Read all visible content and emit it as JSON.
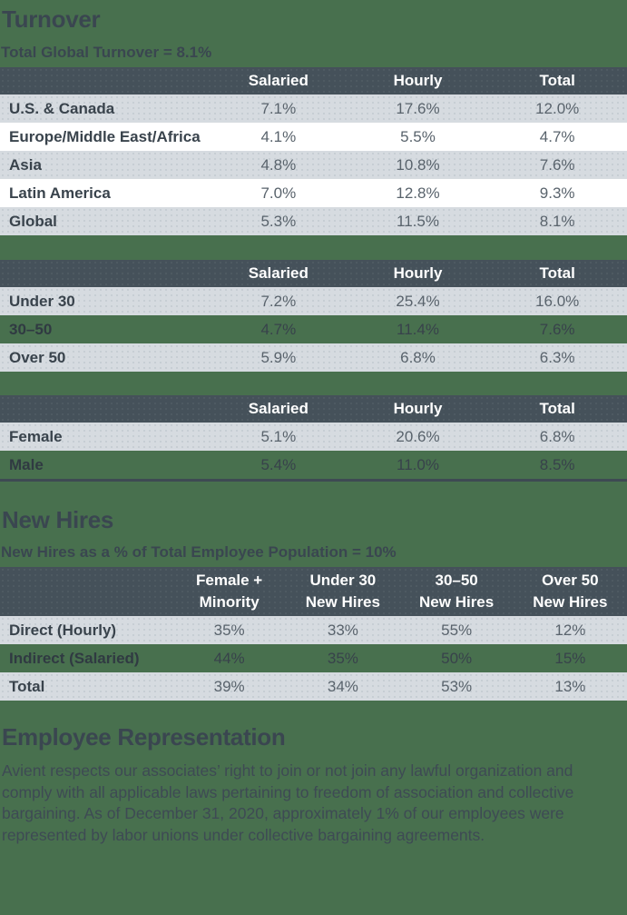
{
  "colors": {
    "page_bg": "#48704E",
    "table_header_bg": "#45515A",
    "row_gray": "#D6DBE0",
    "row_white": "#FFFFFF",
    "heading_text": "#3A4650",
    "header_text": "#FFFFFF"
  },
  "turnover": {
    "title": "Turnover",
    "subtitle": "Total Global Turnover = 8.1%",
    "region_table": {
      "columns": [
        "Salaried",
        "Hourly",
        "Total"
      ],
      "rows": [
        {
          "label": "U.S. & Canada",
          "values": [
            "7.1%",
            "17.6%",
            "12.0%"
          ]
        },
        {
          "label": "Europe/Middle East/Africa",
          "values": [
            "4.1%",
            "5.5%",
            "4.7%"
          ]
        },
        {
          "label": "Asia",
          "values": [
            "4.8%",
            "10.8%",
            "7.6%"
          ]
        },
        {
          "label": "Latin America",
          "values": [
            "7.0%",
            "12.8%",
            "9.3%"
          ]
        },
        {
          "label": "Global",
          "values": [
            "5.3%",
            "11.5%",
            "8.1%"
          ]
        }
      ]
    },
    "age_table": {
      "columns": [
        "Salaried",
        "Hourly",
        "Total"
      ],
      "rows": [
        {
          "label": "Under 30",
          "values": [
            "7.2%",
            "25.4%",
            "16.0%"
          ]
        },
        {
          "label": "30–50",
          "values": [
            "4.7%",
            "11.4%",
            "7.6%"
          ]
        },
        {
          "label": "Over 50",
          "values": [
            "5.9%",
            "6.8%",
            "6.3%"
          ]
        }
      ]
    },
    "gender_table": {
      "columns": [
        "Salaried",
        "Hourly",
        "Total"
      ],
      "rows": [
        {
          "label": "Female",
          "values": [
            "5.1%",
            "20.6%",
            "6.8%"
          ]
        },
        {
          "label": "Male",
          "values": [
            "5.4%",
            "11.0%",
            "8.5%"
          ]
        }
      ]
    }
  },
  "new_hires": {
    "title": "New Hires",
    "subtitle": "New Hires as a % of Total Employee Population = 10%",
    "table": {
      "columns": [
        [
          "Female +",
          "Minority"
        ],
        [
          "Under 30",
          "New Hires"
        ],
        [
          "30–50",
          "New Hires"
        ],
        [
          "Over 50",
          "New Hires"
        ]
      ],
      "rows": [
        {
          "label": "Direct (Hourly)",
          "values": [
            "35%",
            "33%",
            "55%",
            "12%"
          ]
        },
        {
          "label": "Indirect (Salaried)",
          "values": [
            "44%",
            "35%",
            "50%",
            "15%"
          ]
        },
        {
          "label": "Total",
          "values": [
            "39%",
            "34%",
            "53%",
            "13%"
          ]
        }
      ]
    }
  },
  "employee_representation": {
    "title": "Employee Representation",
    "body": "Avient respects our associates’ right to join or not join any lawful organization and comply with all applicable laws pertaining to freedom of association and collective bargaining. As of December 31, 2020, approximately 1% of our employees were represented by labor unions under collective bargaining agreements."
  }
}
